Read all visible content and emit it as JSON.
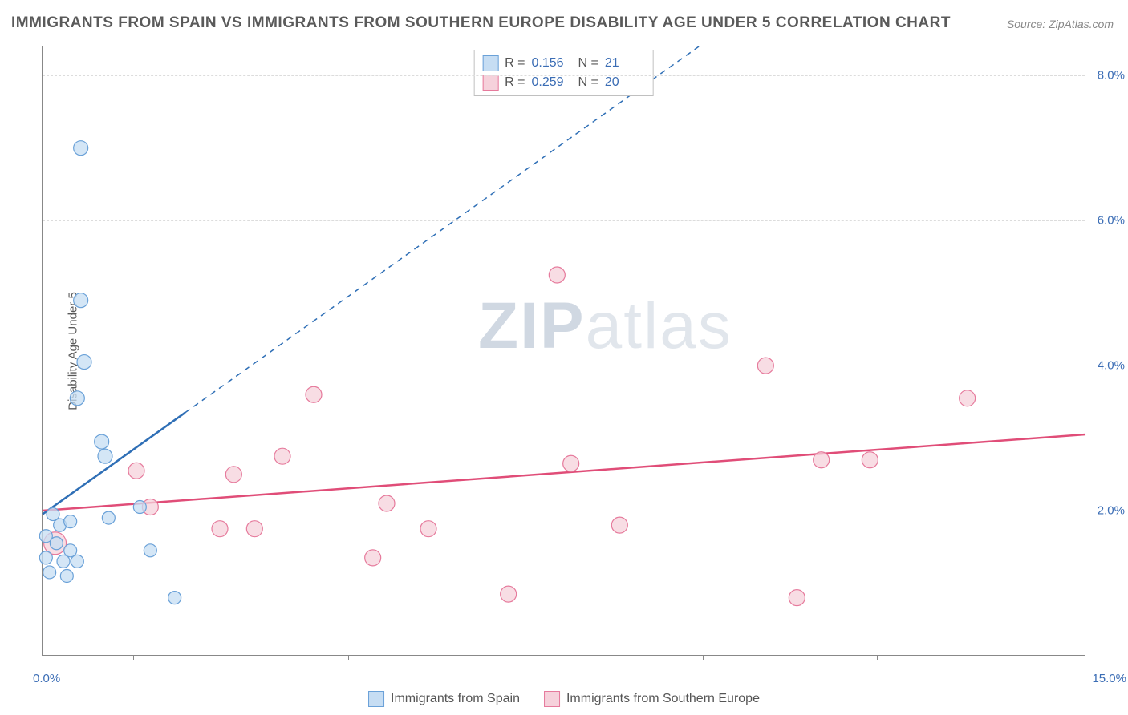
{
  "title": "IMMIGRANTS FROM SPAIN VS IMMIGRANTS FROM SOUTHERN EUROPE DISABILITY AGE UNDER 5 CORRELATION CHART",
  "source": "Source: ZipAtlas.com",
  "ylabel": "Disability Age Under 5",
  "watermark_a": "ZIP",
  "watermark_b": "atlas",
  "chart": {
    "type": "scatter",
    "xlim": [
      0,
      15
    ],
    "ylim": [
      0,
      8.4
    ],
    "xtick_positions": [
      0,
      1.3,
      4.4,
      7.0,
      9.5,
      12.0,
      14.3
    ],
    "xtick_labels": {
      "start": "0.0%",
      "end": "15.0%"
    },
    "ytick_positions": [
      2.0,
      4.0,
      6.0,
      8.0
    ],
    "ytick_labels": [
      "2.0%",
      "4.0%",
      "6.0%",
      "8.0%"
    ],
    "grid_color": "#dcdcdc",
    "axis_color": "#888888",
    "background_color": "#ffffff",
    "series": [
      {
        "name": "Immigrants from Spain",
        "color_fill": "#c6ddf3",
        "color_stroke": "#6aa1d8",
        "line_color": "#2f6fb6",
        "r_value": "0.156",
        "n_value": "21",
        "marker_radius": 9,
        "trend": {
          "x1": 0,
          "y1": 1.95,
          "x2": 15,
          "y2": 12.2,
          "solid_until_x": 2.05
        },
        "points": [
          {
            "x": 0.55,
            "y": 7.0,
            "r": 9
          },
          {
            "x": 0.55,
            "y": 4.9,
            "r": 9
          },
          {
            "x": 0.6,
            "y": 4.05,
            "r": 9
          },
          {
            "x": 0.5,
            "y": 3.55,
            "r": 9
          },
          {
            "x": 0.85,
            "y": 2.95,
            "r": 9
          },
          {
            "x": 0.9,
            "y": 2.75,
            "r": 9
          },
          {
            "x": 0.15,
            "y": 1.95,
            "r": 8
          },
          {
            "x": 0.25,
            "y": 1.8,
            "r": 8
          },
          {
            "x": 0.4,
            "y": 1.85,
            "r": 8
          },
          {
            "x": 0.95,
            "y": 1.9,
            "r": 8
          },
          {
            "x": 0.05,
            "y": 1.65,
            "r": 8
          },
          {
            "x": 0.2,
            "y": 1.55,
            "r": 8
          },
          {
            "x": 0.4,
            "y": 1.45,
            "r": 8
          },
          {
            "x": 0.05,
            "y": 1.35,
            "r": 8
          },
          {
            "x": 0.3,
            "y": 1.3,
            "r": 8
          },
          {
            "x": 0.5,
            "y": 1.3,
            "r": 8
          },
          {
            "x": 1.55,
            "y": 1.45,
            "r": 8
          },
          {
            "x": 0.1,
            "y": 1.15,
            "r": 8
          },
          {
            "x": 0.35,
            "y": 1.1,
            "r": 8
          },
          {
            "x": 1.9,
            "y": 0.8,
            "r": 8
          },
          {
            "x": 1.4,
            "y": 2.05,
            "r": 8
          }
        ]
      },
      {
        "name": "Immigrants from Southern Europe",
        "color_fill": "#f6d1db",
        "color_stroke": "#e67a9c",
        "line_color": "#e04d78",
        "r_value": "0.259",
        "n_value": "20",
        "marker_radius": 9,
        "trend": {
          "x1": 0,
          "y1": 2.0,
          "x2": 15,
          "y2": 3.05,
          "solid_until_x": 15
        },
        "points": [
          {
            "x": 7.4,
            "y": 5.25,
            "r": 10
          },
          {
            "x": 10.4,
            "y": 4.0,
            "r": 10
          },
          {
            "x": 13.3,
            "y": 3.55,
            "r": 10
          },
          {
            "x": 3.9,
            "y": 3.6,
            "r": 10
          },
          {
            "x": 3.45,
            "y": 2.75,
            "r": 10
          },
          {
            "x": 11.2,
            "y": 2.7,
            "r": 10
          },
          {
            "x": 7.6,
            "y": 2.65,
            "r": 10
          },
          {
            "x": 11.9,
            "y": 2.7,
            "r": 10
          },
          {
            "x": 1.35,
            "y": 2.55,
            "r": 10
          },
          {
            "x": 2.75,
            "y": 2.5,
            "r": 10
          },
          {
            "x": 4.95,
            "y": 2.1,
            "r": 10
          },
          {
            "x": 1.55,
            "y": 2.05,
            "r": 10
          },
          {
            "x": 2.55,
            "y": 1.75,
            "r": 10
          },
          {
            "x": 3.05,
            "y": 1.75,
            "r": 10
          },
          {
            "x": 5.55,
            "y": 1.75,
            "r": 10
          },
          {
            "x": 8.3,
            "y": 1.8,
            "r": 10
          },
          {
            "x": 4.75,
            "y": 1.35,
            "r": 10
          },
          {
            "x": 6.7,
            "y": 0.85,
            "r": 10
          },
          {
            "x": 10.85,
            "y": 0.8,
            "r": 10
          },
          {
            "x": 0.18,
            "y": 1.55,
            "r": 14
          }
        ]
      }
    ],
    "legend_bottom": [
      {
        "label": "Immigrants from Spain",
        "fill": "#c6ddf3",
        "stroke": "#6aa1d8"
      },
      {
        "label": "Immigrants from Southern Europe",
        "fill": "#f6d1db",
        "stroke": "#e67a9c"
      }
    ]
  }
}
